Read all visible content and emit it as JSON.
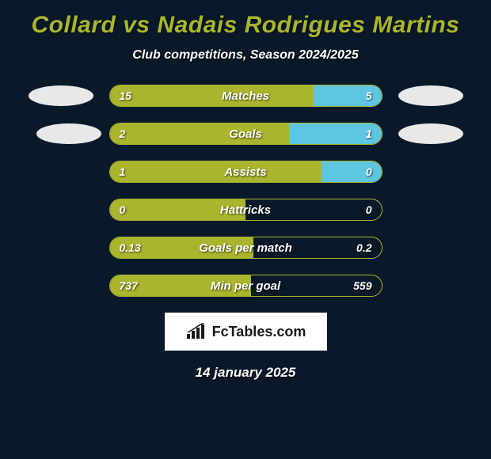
{
  "title": "Collard vs Nadais Rodrigues Martins",
  "subtitle": "Club competitions, Season 2024/2025",
  "footer_date": "14 january 2025",
  "footer_brand": "FcTables.com",
  "colors": {
    "background": "#0a1929",
    "title": "#aab52e",
    "text": "#ffffff",
    "left_fill": "#aab52e",
    "right_fill": "#5ec6e0",
    "border": "#aab52e",
    "ellipse": "#e8e8e8",
    "logo_bg": "#ffffff"
  },
  "side_ellipses": {
    "rows_with_ellipse": [
      0,
      1
    ],
    "left_offset": [
      0,
      10
    ]
  },
  "stats": [
    {
      "label": "Matches",
      "left_value": "15",
      "right_value": "5",
      "left_pct": 75,
      "right_pct": 25
    },
    {
      "label": "Goals",
      "left_value": "2",
      "right_value": "1",
      "left_pct": 66,
      "right_pct": 34
    },
    {
      "label": "Assists",
      "left_value": "1",
      "right_value": "0",
      "left_pct": 78,
      "right_pct": 22
    },
    {
      "label": "Hattricks",
      "left_value": "0",
      "right_value": "0",
      "left_pct": 50,
      "right_pct": 0
    },
    {
      "label": "Goals per match",
      "left_value": "0.13",
      "right_value": "0.2",
      "left_pct": 53,
      "right_pct": 0
    },
    {
      "label": "Min per goal",
      "left_value": "737",
      "right_value": "559",
      "left_pct": 52,
      "right_pct": 0
    }
  ]
}
